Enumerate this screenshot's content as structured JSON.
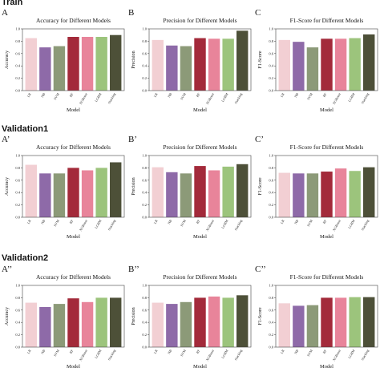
{
  "sections": [
    {
      "title": "Train"
    },
    {
      "title": "Validation1"
    },
    {
      "title": "Validation2"
    }
  ],
  "colors": {
    "LR": "#f2cfd3",
    "NB": "#8e6aa8",
    "SVM": "#8c9a78",
    "RF": "#a32a3a",
    "XGBoost": "#e8849a",
    "LGBM": "#9cc47c",
    "Stacking": "#4d5038"
  },
  "chart_data": [
    {
      "letter": "A",
      "type": "bar",
      "title": "Accuracy for Different Models",
      "xlabel": "Model",
      "ylabel": "Accuracy",
      "categories": [
        "LR",
        "NB",
        "SVM",
        "RF",
        "XGBoost",
        "LGBM",
        "Stacking"
      ],
      "values": [
        0.85,
        0.7,
        0.72,
        0.87,
        0.87,
        0.87,
        0.9
      ],
      "ylim": [
        0,
        1.0
      ],
      "yticks": [
        "0.0",
        "0.2",
        "0.4",
        "0.6",
        "0.8",
        "1.0"
      ],
      "grid": false
    },
    {
      "letter": "B",
      "type": "bar",
      "title": "Precision for Different Models",
      "xlabel": "Model",
      "ylabel": "Precision",
      "categories": [
        "LR",
        "NB",
        "SVM",
        "RF",
        "XGBoost",
        "LGBM",
        "Stacking"
      ],
      "values": [
        0.82,
        0.73,
        0.72,
        0.85,
        0.84,
        0.84,
        0.97
      ],
      "ylim": [
        0,
        1.0
      ],
      "yticks": [
        "0.0",
        "0.2",
        "0.4",
        "0.6",
        "0.8",
        "1.0"
      ],
      "grid": false
    },
    {
      "letter": "C",
      "type": "bar",
      "title": "F1-Score for Different Models",
      "xlabel": "Model",
      "ylabel": "F1-Score",
      "categories": [
        "LR",
        "NB",
        "SVM",
        "RF",
        "XGBoost",
        "LGBM",
        "Stacking"
      ],
      "values": [
        0.82,
        0.79,
        0.7,
        0.84,
        0.84,
        0.85,
        0.91
      ],
      "ylim": [
        0,
        1.0
      ],
      "yticks": [
        "0.0",
        "0.2",
        "0.4",
        "0.6",
        "0.8",
        "1.0"
      ],
      "grid": false
    },
    {
      "letter": "A’",
      "type": "bar",
      "title": "Accuracy for Different Models",
      "xlabel": "Model",
      "ylabel": "Accuracy",
      "categories": [
        "LR",
        "NB",
        "SVM",
        "RF",
        "XGBoost",
        "LGBM",
        "Stacking"
      ],
      "values": [
        0.85,
        0.71,
        0.71,
        0.8,
        0.76,
        0.8,
        0.89
      ],
      "ylim": [
        0,
        1.0
      ],
      "yticks": [
        "0.0",
        "0.2",
        "0.4",
        "0.6",
        "0.8",
        "1.0"
      ],
      "grid": false
    },
    {
      "letter": "B’",
      "type": "bar",
      "title": "Precision for Different Models",
      "xlabel": "Model",
      "ylabel": "Precision",
      "categories": [
        "LR",
        "NB",
        "SVM",
        "RF",
        "XGBoost",
        "LGBM",
        "Stacking"
      ],
      "values": [
        0.81,
        0.73,
        0.71,
        0.83,
        0.76,
        0.82,
        0.86
      ],
      "ylim": [
        0,
        1.0
      ],
      "yticks": [
        "0.0",
        "0.2",
        "0.4",
        "0.6",
        "0.8",
        "1.0"
      ],
      "grid": false
    },
    {
      "letter": "C’",
      "type": "bar",
      "title": "F1-Score for Different Models",
      "xlabel": "Model",
      "ylabel": "F1-Score",
      "categories": [
        "LR",
        "NB",
        "SVM",
        "RF",
        "XGBoost",
        "LGBM",
        "Stacking"
      ],
      "values": [
        0.72,
        0.71,
        0.71,
        0.74,
        0.79,
        0.75,
        0.81
      ],
      "ylim": [
        0,
        1.0
      ],
      "yticks": [
        "0.0",
        "0.2",
        "0.4",
        "0.6",
        "0.8",
        "1.0"
      ],
      "grid": false
    },
    {
      "letter": "A’’",
      "type": "bar",
      "title": "Accuracy for Different Models",
      "xlabel": "Model",
      "ylabel": "Accuracy",
      "categories": [
        "LR",
        "NB",
        "SVM",
        "RF",
        "XGBoost",
        "LGBM",
        "Stacking"
      ],
      "values": [
        0.72,
        0.65,
        0.7,
        0.79,
        0.73,
        0.8,
        0.8
      ],
      "ylim": [
        0,
        1.0
      ],
      "yticks": [
        "0.0",
        "0.2",
        "0.4",
        "0.6",
        "0.8",
        "1.0"
      ],
      "grid": false
    },
    {
      "letter": "B’’",
      "type": "bar",
      "title": "Precision for Different Models",
      "xlabel": "Model",
      "ylabel": "Precision",
      "categories": [
        "LR",
        "NB",
        "SVM",
        "RF",
        "XGBoost",
        "LGBM",
        "Stacking"
      ],
      "values": [
        0.72,
        0.7,
        0.73,
        0.8,
        0.82,
        0.8,
        0.84
      ],
      "ylim": [
        0,
        1.0
      ],
      "yticks": [
        "0.0",
        "0.2",
        "0.4",
        "0.6",
        "0.8",
        "1.0"
      ],
      "grid": false
    },
    {
      "letter": "C’’",
      "type": "bar",
      "title": "F1-Score for Different Models",
      "xlabel": "Model",
      "ylabel": "F1-Score",
      "categories": [
        "LR",
        "NB",
        "SVM",
        "RF",
        "XGBoost",
        "LGBM",
        "Stacking"
      ],
      "values": [
        0.71,
        0.67,
        0.68,
        0.8,
        0.8,
        0.81,
        0.81
      ],
      "ylim": [
        0,
        1.0
      ],
      "yticks": [
        "0.0",
        "0.2",
        "0.4",
        "0.6",
        "0.8",
        "1.0"
      ],
      "grid": false
    }
  ]
}
